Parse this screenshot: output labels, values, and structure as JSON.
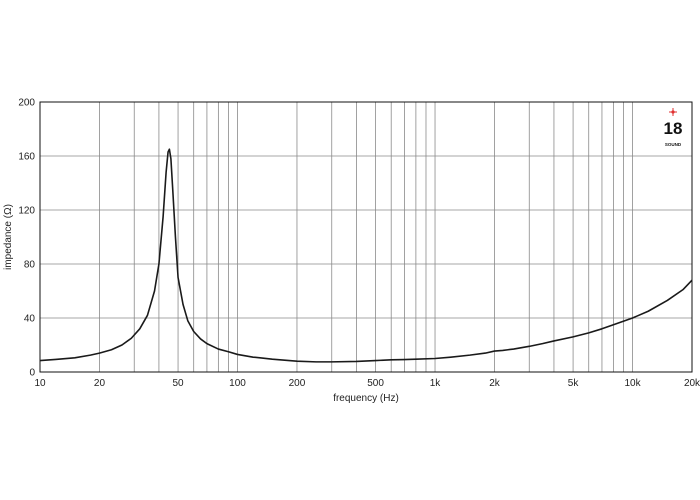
{
  "chart_data": {
    "type": "line",
    "xscale": "log",
    "xlim": [
      10,
      20000
    ],
    "ylim": [
      0,
      200
    ],
    "xlabel": "frequency (Hz)",
    "ylabel": "impedance (Ω)",
    "grid": true,
    "xticks": [
      {
        "value": 10,
        "label": "10"
      },
      {
        "value": 20,
        "label": "20"
      },
      {
        "value": 50,
        "label": "50"
      },
      {
        "value": 100,
        "label": "100"
      },
      {
        "value": 200,
        "label": "200"
      },
      {
        "value": 500,
        "label": "500"
      },
      {
        "value": 1000,
        "label": "1k"
      },
      {
        "value": 2000,
        "label": "2k"
      },
      {
        "value": 5000,
        "label": "5k"
      },
      {
        "value": 10000,
        "label": "10k"
      },
      {
        "value": 20000,
        "label": "20k"
      }
    ],
    "yticks": [
      {
        "value": 0,
        "label": "0"
      },
      {
        "value": 40,
        "label": "40"
      },
      {
        "value": 80,
        "label": "80"
      },
      {
        "value": 120,
        "label": "120"
      },
      {
        "value": 160,
        "label": "160"
      },
      {
        "value": 200,
        "label": "200"
      }
    ],
    "x_gridlines": [
      10,
      20,
      30,
      40,
      50,
      60,
      70,
      80,
      90,
      100,
      200,
      300,
      400,
      500,
      600,
      700,
      800,
      900,
      1000,
      2000,
      3000,
      4000,
      5000,
      6000,
      7000,
      8000,
      9000,
      10000,
      20000
    ],
    "series": [
      {
        "color": "#1a1a1a",
        "points": [
          [
            10,
            8.5
          ],
          [
            12,
            9.3
          ],
          [
            15,
            10.5
          ],
          [
            18,
            12.5
          ],
          [
            20,
            14
          ],
          [
            23,
            16.5
          ],
          [
            26,
            20
          ],
          [
            29,
            25
          ],
          [
            32,
            32
          ],
          [
            35,
            42
          ],
          [
            38,
            60
          ],
          [
            40,
            80
          ],
          [
            42,
            115
          ],
          [
            43.5,
            148
          ],
          [
            44.5,
            163
          ],
          [
            45.2,
            165
          ],
          [
            46,
            158
          ],
          [
            47,
            135
          ],
          [
            48.5,
            100
          ],
          [
            50,
            70
          ],
          [
            53,
            50
          ],
          [
            56,
            38
          ],
          [
            60,
            30
          ],
          [
            65,
            24.5
          ],
          [
            70,
            21
          ],
          [
            80,
            17
          ],
          [
            90,
            15
          ],
          [
            100,
            13
          ],
          [
            120,
            11
          ],
          [
            130,
            10.5
          ],
          [
            150,
            9.5
          ],
          [
            200,
            8
          ],
          [
            250,
            7.5
          ],
          [
            300,
            7.5
          ],
          [
            400,
            7.8
          ],
          [
            500,
            8.5
          ],
          [
            600,
            9
          ],
          [
            700,
            9.2
          ],
          [
            800,
            9.5
          ],
          [
            1000,
            10
          ],
          [
            1200,
            11
          ],
          [
            1500,
            12.5
          ],
          [
            1800,
            14
          ],
          [
            2000,
            15.5
          ],
          [
            2200,
            16
          ],
          [
            2500,
            17
          ],
          [
            3000,
            19
          ],
          [
            3500,
            21
          ],
          [
            4000,
            23
          ],
          [
            5000,
            26
          ],
          [
            6000,
            29
          ],
          [
            7000,
            32
          ],
          [
            8000,
            35
          ],
          [
            10000,
            40
          ],
          [
            12000,
            45
          ],
          [
            15000,
            53
          ],
          [
            18000,
            61
          ],
          [
            20000,
            68
          ]
        ]
      }
    ]
  },
  "logo": {
    "number": "18",
    "subtext": "SOUND"
  }
}
